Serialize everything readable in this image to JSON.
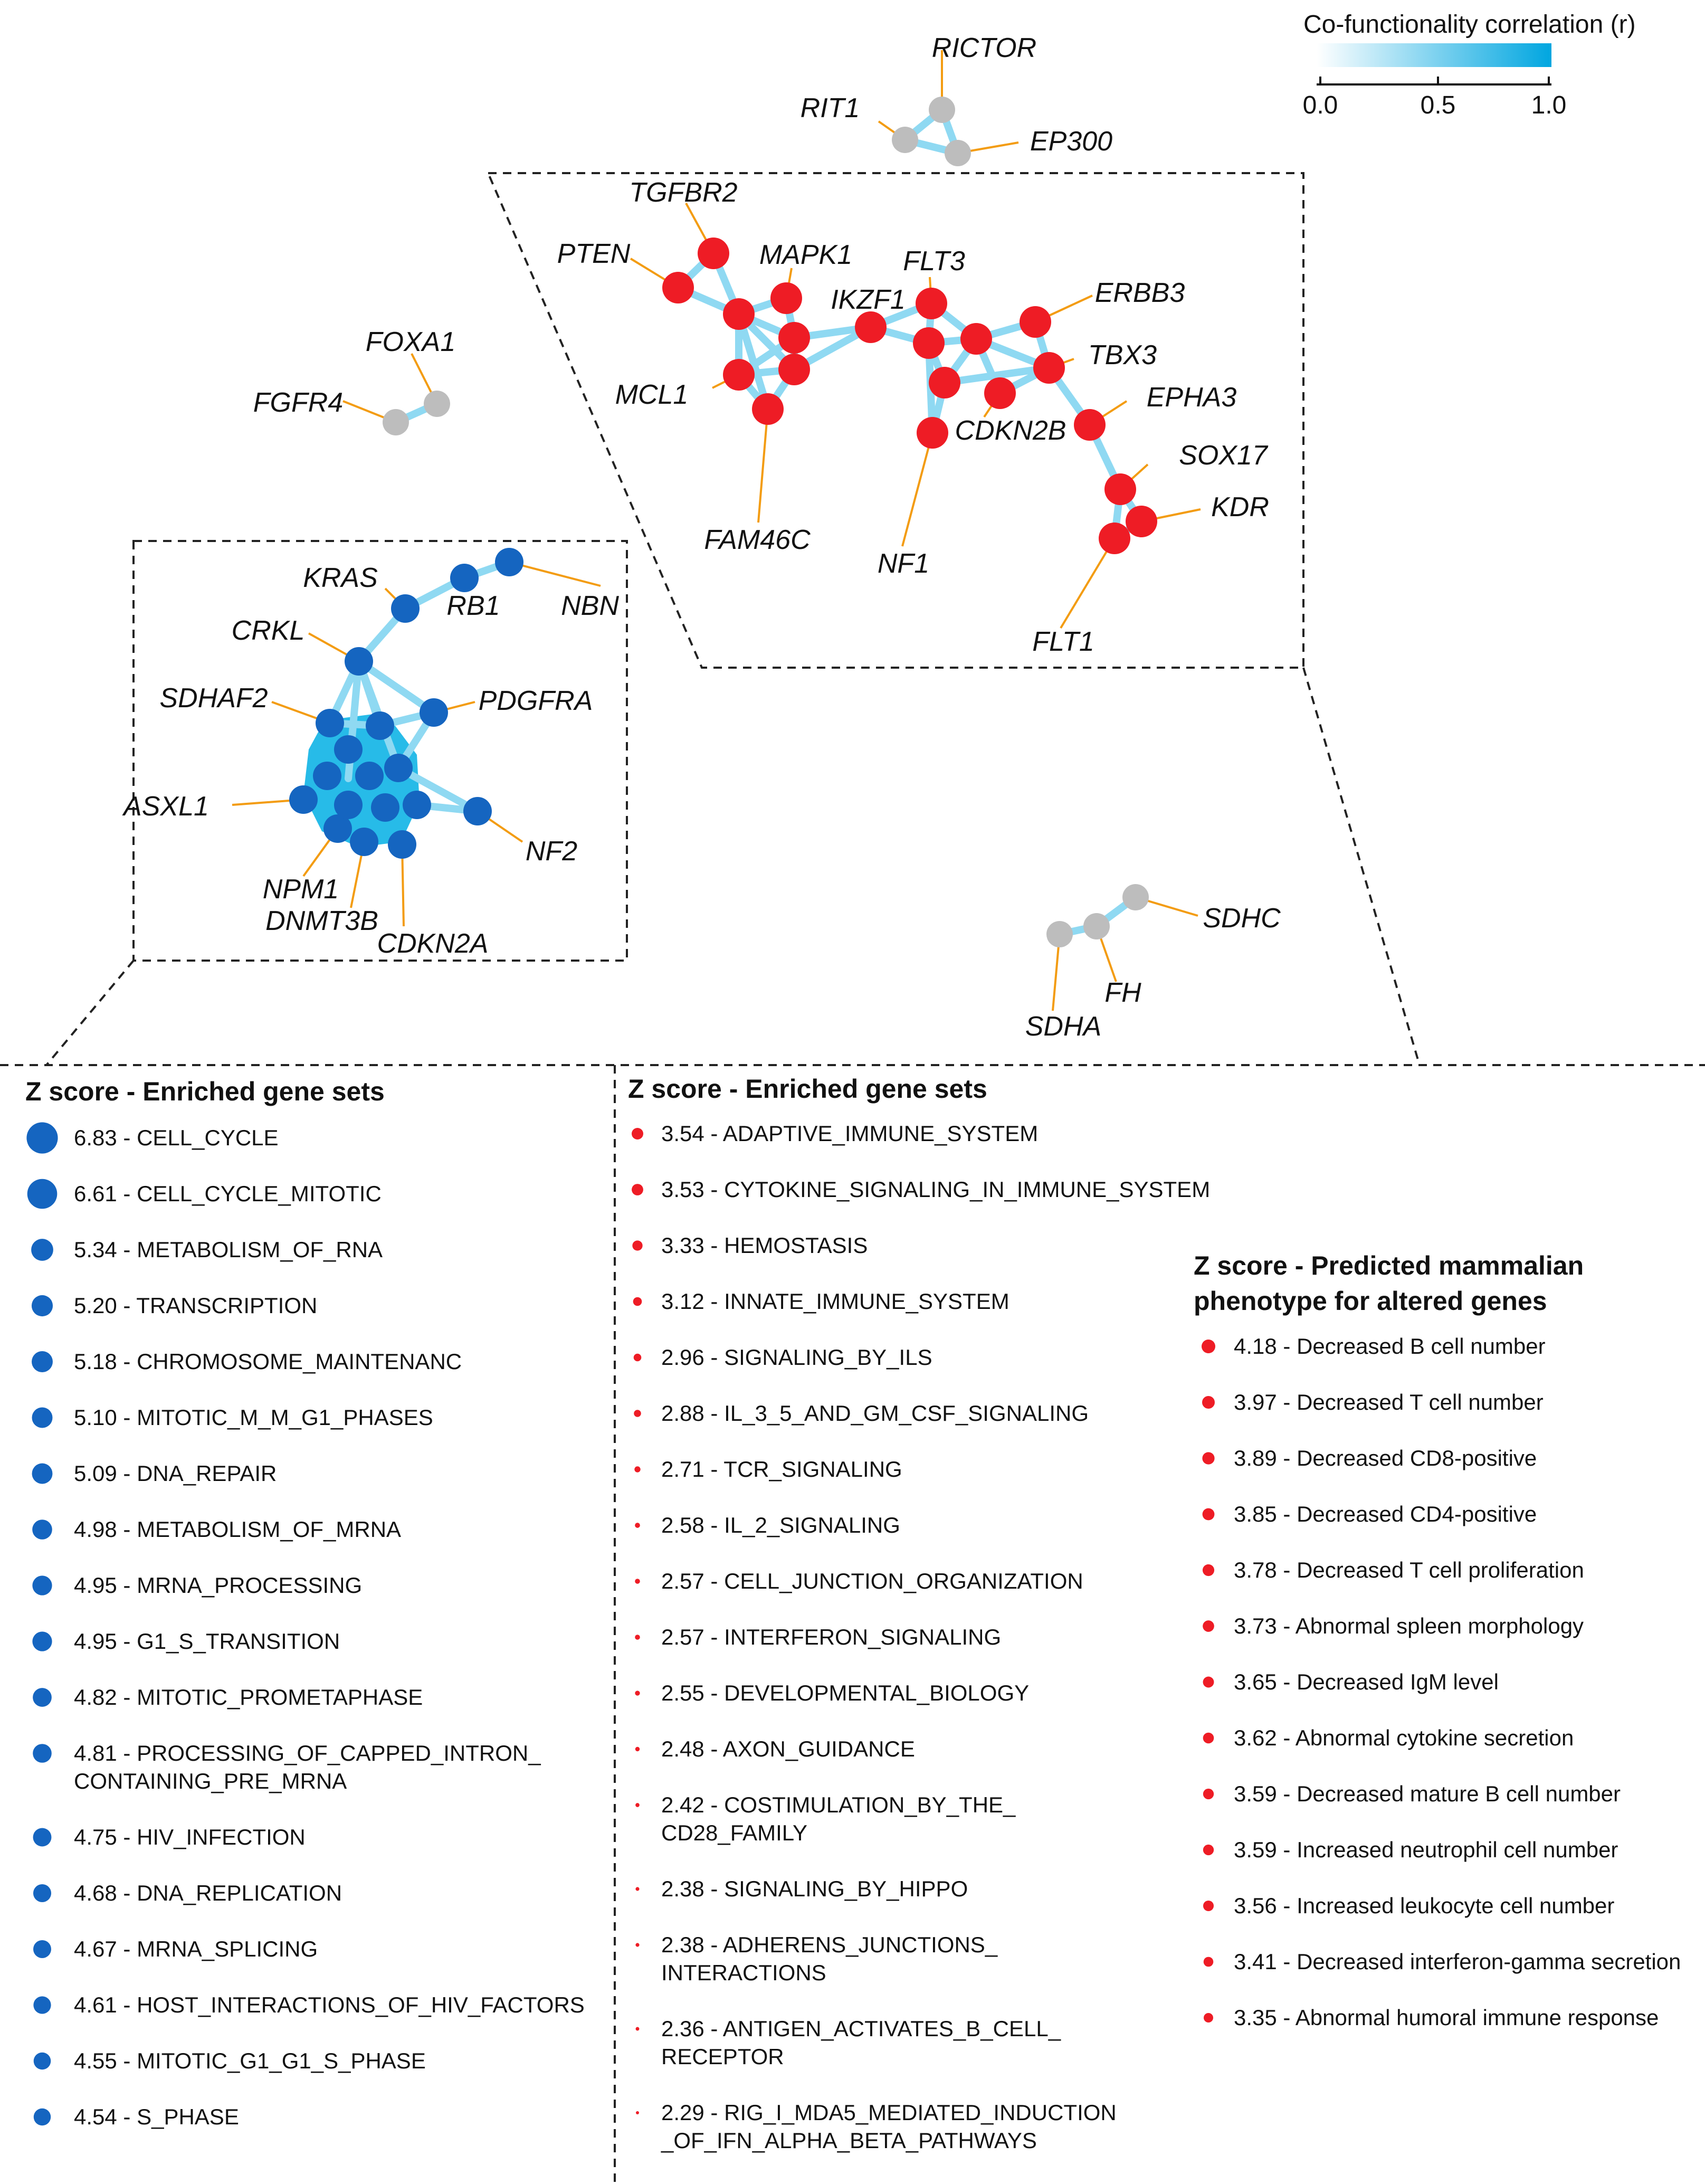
{
  "legend": {
    "title": "Co-functionality correlation (r)",
    "ticks": [
      "0.0",
      "0.5",
      "1.0"
    ],
    "color_low": "#ffffff",
    "color_high": "#00a6e0"
  },
  "colors": {
    "blue_node": "#1565c0",
    "red_node": "#ee1c25",
    "gray_node": "#bdbdbd",
    "edge": "#8fd9f2",
    "label_line": "#f39c12",
    "dense_fill": "#10b4e6"
  },
  "genes": {
    "rictor": "RICTOR",
    "rit1": "RIT1",
    "ep300": "EP300",
    "foxa1": "FOXA1",
    "fgfr4": "FGFR4",
    "tgfbr2": "TGFBR2",
    "pten": "PTEN",
    "mapk1": "MAPK1",
    "ikzf1": "IKZF1",
    "flt3": "FLT3",
    "erbb3": "ERBB3",
    "tbx3": "TBX3",
    "epha3": "EPHA3",
    "mcl1": "MCL1",
    "cdkn2b": "CDKN2B",
    "sox17": "SOX17",
    "kdr": "KDR",
    "fam46c": "FAM46C",
    "nf1": "NF1",
    "flt1": "FLT1",
    "kras": "KRAS",
    "rb1": "RB1",
    "nbn": "NBN",
    "crkl": "CRKL",
    "sdhaf2": "SDHAF2",
    "pdgfra": "PDGFRA",
    "asxl1": "ASXL1",
    "nf2": "NF2",
    "npm1": "NPM1",
    "dnmt3b": "DNMT3B",
    "cdkn2a": "CDKN2A",
    "sdhc": "SDHC",
    "fh": "FH",
    "sdha": "SDHA"
  },
  "panel_blue": {
    "title": "Z score - Enriched gene sets",
    "items": [
      {
        "z": 6.83,
        "lines": [
          "6.83 - CELL_CYCLE"
        ]
      },
      {
        "z": 6.61,
        "lines": [
          "6.61 - CELL_CYCLE_MITOTIC"
        ]
      },
      {
        "z": 5.34,
        "lines": [
          "5.34 - METABOLISM_OF_RNA"
        ]
      },
      {
        "z": 5.2,
        "lines": [
          "5.20 - TRANSCRIPTION"
        ]
      },
      {
        "z": 5.18,
        "lines": [
          "5.18 - CHROMOSOME_MAINTENANC"
        ]
      },
      {
        "z": 5.1,
        "lines": [
          "5.10 - MITOTIC_M_M_G1_PHASES"
        ]
      },
      {
        "z": 5.09,
        "lines": [
          "5.09 - DNA_REPAIR"
        ]
      },
      {
        "z": 4.98,
        "lines": [
          "4.98 - METABOLISM_OF_MRNA"
        ]
      },
      {
        "z": 4.95,
        "lines": [
          "4.95 - MRNA_PROCESSING"
        ]
      },
      {
        "z": 4.95,
        "lines": [
          "4.95 - G1_S_TRANSITION"
        ]
      },
      {
        "z": 4.82,
        "lines": [
          "4.82 - MITOTIC_PROMETAPHASE"
        ]
      },
      {
        "z": 4.81,
        "lines": [
          "4.81 - PROCESSING_OF_CAPPED_INTRON_",
          "CONTAINING_PRE_MRNA"
        ]
      },
      {
        "z": 4.75,
        "lines": [
          "4.75 - HIV_INFECTION"
        ]
      },
      {
        "z": 4.68,
        "lines": [
          "4.68 - DNA_REPLICATION"
        ]
      },
      {
        "z": 4.67,
        "lines": [
          "4.67 - MRNA_SPLICING"
        ]
      },
      {
        "z": 4.61,
        "lines": [
          "4.61 - HOST_INTERACTIONS_OF_HIV_FACTORS"
        ]
      },
      {
        "z": 4.55,
        "lines": [
          "4.55 - MITOTIC_G1_G1_S_PHASE"
        ]
      },
      {
        "z": 4.54,
        "lines": [
          "4.54 - S_PHASE"
        ]
      }
    ]
  },
  "panel_red": {
    "title": "Z score - Enriched gene sets",
    "items": [
      {
        "z": 3.54,
        "lines": [
          "3.54 - ADAPTIVE_IMMUNE_SYSTEM"
        ]
      },
      {
        "z": 3.53,
        "lines": [
          "3.53 - CYTOKINE_SIGNALING_IN_IMMUNE_SYSTEM"
        ]
      },
      {
        "z": 3.33,
        "lines": [
          "3.33 - HEMOSTASIS"
        ]
      },
      {
        "z": 3.12,
        "lines": [
          "3.12 - INNATE_IMMUNE_SYSTEM"
        ]
      },
      {
        "z": 2.96,
        "lines": [
          "2.96 - SIGNALING_BY_ILS"
        ]
      },
      {
        "z": 2.88,
        "lines": [
          "2.88 - IL_3_5_AND_GM_CSF_SIGNALING"
        ]
      },
      {
        "z": 2.71,
        "lines": [
          "2.71 - TCR_SIGNALING"
        ]
      },
      {
        "z": 2.58,
        "lines": [
          "2.58 - IL_2_SIGNALING"
        ]
      },
      {
        "z": 2.57,
        "lines": [
          "2.57 - CELL_JUNCTION_ORGANIZATION"
        ]
      },
      {
        "z": 2.57,
        "lines": [
          "2.57 - INTERFERON_SIGNALING"
        ]
      },
      {
        "z": 2.55,
        "lines": [
          "2.55 - DEVELOPMENTAL_BIOLOGY"
        ]
      },
      {
        "z": 2.48,
        "lines": [
          "2.48 - AXON_GUIDANCE"
        ]
      },
      {
        "z": 2.42,
        "lines": [
          "2.42 - COSTIMULATION_BY_THE_",
          "CD28_FAMILY"
        ]
      },
      {
        "z": 2.38,
        "lines": [
          "2.38 - SIGNALING_BY_HIPPO"
        ]
      },
      {
        "z": 2.38,
        "lines": [
          "2.38 - ADHERENS_JUNCTIONS_",
          "INTERACTIONS"
        ]
      },
      {
        "z": 2.36,
        "lines": [
          "2.36 - ANTIGEN_ACTIVATES_B_CELL_",
          "RECEPTOR"
        ]
      },
      {
        "z": 2.29,
        "lines": [
          "2.29 - RIG_I_MDA5_MEDIATED_INDUCTION",
          "_OF_IFN_ALPHA_BETA_PATHWAYS"
        ]
      }
    ]
  },
  "panel_pheno": {
    "title_lines": [
      "Z score - Predicted mammalian",
      "phenotype for altered genes"
    ],
    "items": [
      {
        "z": 4.18,
        "lines": [
          "4.18 - Decreased B cell number"
        ]
      },
      {
        "z": 3.97,
        "lines": [
          "3.97 - Decreased T cell number"
        ]
      },
      {
        "z": 3.89,
        "lines": [
          "3.89 - Decreased CD8-positive"
        ]
      },
      {
        "z": 3.85,
        "lines": [
          "3.85 - Decreased CD4-positive"
        ]
      },
      {
        "z": 3.78,
        "lines": [
          "3.78 - Decreased T cell proliferation"
        ]
      },
      {
        "z": 3.73,
        "lines": [
          "3.73 - Abnormal spleen morphology"
        ]
      },
      {
        "z": 3.65,
        "lines": [
          "3.65 - Decreased IgM level"
        ]
      },
      {
        "z": 3.62,
        "lines": [
          "3.62 - Abnormal cytokine secretion"
        ]
      },
      {
        "z": 3.59,
        "lines": [
          "3.59 - Decreased mature B cell number"
        ]
      },
      {
        "z": 3.59,
        "lines": [
          "3.59 - Increased neutrophil cell number"
        ]
      },
      {
        "z": 3.56,
        "lines": [
          "3.56 - Increased leukocyte cell number"
        ]
      },
      {
        "z": 3.41,
        "lines": [
          "3.41 - Decreased interferon-gamma secretion"
        ]
      },
      {
        "z": 3.35,
        "lines": [
          "3.35 - Abnormal humoral immune response"
        ]
      }
    ]
  }
}
